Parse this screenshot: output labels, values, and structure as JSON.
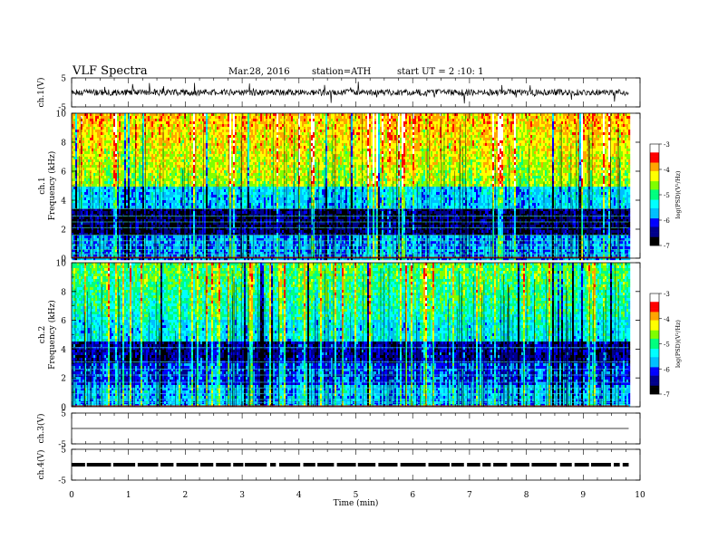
{
  "header": {
    "title": "VLF  Spectra",
    "date": "Mar.28, 2016",
    "station": "station=ATH",
    "start": "start  UT  =   2  :10: 1"
  },
  "chart_data": [
    {
      "type": "line",
      "panel": "ch1-waveform",
      "ylabel": "ch.1(V)",
      "yticks": [
        "5",
        "-5"
      ],
      "ylim": [
        -5,
        5
      ],
      "xlim": [
        0,
        10
      ],
      "x_extent": [
        0,
        9.8
      ],
      "baseline": 0,
      "line_color": "#000000"
    },
    {
      "type": "heatmap",
      "panel": "ch1-spectrogram",
      "ylabel": [
        "ch.1",
        "Frequency  (kHz)"
      ],
      "yticks": [
        "0",
        "2",
        "4",
        "6",
        "8",
        "10"
      ],
      "ylim": [
        0,
        10
      ],
      "xlim": [
        0,
        10
      ],
      "x_extent": [
        0,
        9.8
      ],
      "colorbar": {
        "label": "log(PSD)(V²/Hz)",
        "ticks": [
          "-3",
          "-4",
          "-5",
          "-6",
          "-7"
        ],
        "range": [
          -7,
          -3
        ]
      },
      "colormap": [
        "#000000",
        "#00008b",
        "#0000ff",
        "#00bfff",
        "#00ffff",
        "#00ff7f",
        "#7fff00",
        "#ffff00",
        "#ffa500",
        "#ff0000",
        "#ffffff"
      ]
    },
    {
      "type": "heatmap",
      "panel": "ch2-spectrogram",
      "ylabel": [
        "ch.2",
        "Frequency  (kHz)"
      ],
      "yticks": [
        "0",
        "2",
        "4",
        "6",
        "8",
        "10"
      ],
      "ylim": [
        0,
        10
      ],
      "xlim": [
        0,
        10
      ],
      "x_extent": [
        0,
        9.8
      ],
      "colorbar": {
        "label": "log(PSD)(V²/Hz)",
        "ticks": [
          "-3",
          "-4",
          "-5",
          "-6",
          "-7"
        ],
        "range": [
          -7,
          -3
        ]
      }
    },
    {
      "type": "line",
      "panel": "ch3-waveform",
      "ylabel": "ch.3(V)",
      "yticks": [
        "5",
        "-5"
      ],
      "ylim": [
        -5,
        5
      ],
      "xlim": [
        0,
        10
      ],
      "x_extent": [
        0,
        9.8
      ],
      "baseline": 0
    },
    {
      "type": "line",
      "panel": "ch4-waveform",
      "ylabel": "ch.4(V)",
      "yticks": [
        "5",
        "-5"
      ],
      "ylim": [
        -5,
        5
      ],
      "xlim": [
        0,
        10
      ],
      "x_extent": [
        0,
        9.8
      ],
      "baseline": 0
    }
  ],
  "xaxis": {
    "label": "Time  (min)",
    "ticks": [
      "0",
      "1",
      "2",
      "3",
      "4",
      "5",
      "6",
      "7",
      "8",
      "9",
      "10"
    ],
    "range": [
      0,
      10
    ]
  }
}
